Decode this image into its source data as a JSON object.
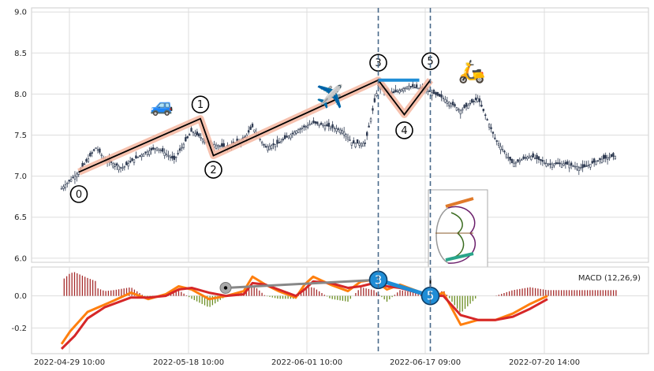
{
  "chart_data": {
    "type": "candlestick",
    "panels": [
      {
        "name": "price",
        "ylim": [
          5.95,
          9.05
        ],
        "yticks": [
          "6.0",
          "6.5",
          "7.0",
          "7.5",
          "8.0",
          "8.5",
          "9.0"
        ],
        "candles_approx": [
          {
            "t": 0.0,
            "close": 6.85
          },
          {
            "t": 2.0,
            "close": 7.05
          },
          {
            "t": 4.0,
            "close": 7.35
          },
          {
            "t": 5.0,
            "close": 7.2
          },
          {
            "t": 7.0,
            "close": 7.1
          },
          {
            "t": 9.0,
            "close": 7.25
          },
          {
            "t": 11.0,
            "close": 7.35
          },
          {
            "t": 13.0,
            "close": 7.2
          },
          {
            "t": 15.0,
            "close": 7.55
          },
          {
            "t": 17.0,
            "close": 7.4
          },
          {
            "t": 19.0,
            "close": 7.35
          },
          {
            "t": 21.0,
            "close": 7.45
          },
          {
            "t": 22.0,
            "close": 7.6
          },
          {
            "t": 23.5,
            "close": 7.35
          },
          {
            "t": 25.0,
            "close": 7.4
          },
          {
            "t": 27.0,
            "close": 7.55
          },
          {
            "t": 29.0,
            "close": 7.65
          },
          {
            "t": 31.0,
            "close": 7.6
          },
          {
            "t": 32.5,
            "close": 7.55
          },
          {
            "t": 33.5,
            "close": 7.4
          },
          {
            "t": 35.0,
            "close": 7.4
          },
          {
            "t": 36.5,
            "close": 8.1
          },
          {
            "t": 38.0,
            "close": 8.0
          },
          {
            "t": 40.0,
            "close": 8.1
          },
          {
            "t": 42.0,
            "close": 8.05
          },
          {
            "t": 44.0,
            "close": 7.95
          },
          {
            "t": 46.0,
            "close": 7.8
          },
          {
            "t": 48.0,
            "close": 7.95
          },
          {
            "t": 50.0,
            "close": 7.45
          },
          {
            "t": 52.0,
            "close": 7.15
          },
          {
            "t": 54.0,
            "close": 7.25
          },
          {
            "t": 56.0,
            "close": 7.15
          },
          {
            "t": 58.0,
            "close": 7.15
          },
          {
            "t": 60.0,
            "close": 7.1
          },
          {
            "t": 62.0,
            "close": 7.2
          },
          {
            "t": 64.0,
            "close": 7.25
          }
        ],
        "wave_points": [
          {
            "label": "0",
            "t": 2.0,
            "price": 7.05
          },
          {
            "label": "1",
            "t": 16.0,
            "price": 7.7
          },
          {
            "label": "2",
            "t": 17.5,
            "price": 7.25
          },
          {
            "label": "3",
            "t": 36.5,
            "price": 8.17
          },
          {
            "label": "4",
            "t": 39.5,
            "price": 7.75
          },
          {
            "label": "5",
            "t": 42.5,
            "price": 8.17
          }
        ],
        "vertical_lines_t": [
          36.5,
          42.5
        ],
        "annotations": [
          "car-emoji",
          "airplane-emoji",
          "scooter-emoji",
          "inset-image"
        ]
      },
      {
        "name": "macd",
        "ylim": [
          -0.36,
          0.18
        ],
        "yticks": [
          "-0.2",
          "0.0"
        ],
        "legend": "MACD (12,26,9)",
        "macd_line_approx": [
          {
            "t": 0.0,
            "v": -0.3
          },
          {
            "t": 1.0,
            "v": -0.22
          },
          {
            "t": 3.0,
            "v": -0.1
          },
          {
            "t": 6.0,
            "v": -0.03
          },
          {
            "t": 8.0,
            "v": 0.02
          },
          {
            "t": 10.0,
            "v": -0.02
          },
          {
            "t": 12.0,
            "v": 0.01
          },
          {
            "t": 13.5,
            "v": 0.06
          },
          {
            "t": 15.0,
            "v": 0.04
          },
          {
            "t": 17.0,
            "v": -0.02
          },
          {
            "t": 19.0,
            "v": 0.0
          },
          {
            "t": 21.0,
            "v": 0.03
          },
          {
            "t": 22.0,
            "v": 0.12
          },
          {
            "t": 23.5,
            "v": 0.07
          },
          {
            "t": 25.0,
            "v": 0.03
          },
          {
            "t": 27.0,
            "v": -0.01
          },
          {
            "t": 28.0,
            "v": 0.07
          },
          {
            "t": 29.0,
            "v": 0.12
          },
          {
            "t": 31.0,
            "v": 0.07
          },
          {
            "t": 33.0,
            "v": 0.03
          },
          {
            "t": 34.5,
            "v": 0.09
          },
          {
            "t": 36.0,
            "v": 0.1
          },
          {
            "t": 37.5,
            "v": 0.04
          },
          {
            "t": 39.0,
            "v": 0.07
          },
          {
            "t": 41.0,
            "v": 0.03
          },
          {
            "t": 42.5,
            "v": -0.01
          },
          {
            "t": 44.0,
            "v": 0.02
          },
          {
            "t": 46.0,
            "v": -0.18
          },
          {
            "t": 48.0,
            "v": -0.15
          },
          {
            "t": 50.0,
            "v": -0.15
          },
          {
            "t": 52.0,
            "v": -0.11
          },
          {
            "t": 54.0,
            "v": -0.05
          },
          {
            "t": 56.0,
            "v": 0.0
          }
        ],
        "signal_line_approx": [
          {
            "t": 0.0,
            "v": -0.33
          },
          {
            "t": 1.5,
            "v": -0.25
          },
          {
            "t": 3.0,
            "v": -0.14
          },
          {
            "t": 5.0,
            "v": -0.07
          },
          {
            "t": 8.0,
            "v": -0.01
          },
          {
            "t": 10.0,
            "v": -0.01
          },
          {
            "t": 12.0,
            "v": 0.0
          },
          {
            "t": 13.5,
            "v": 0.04
          },
          {
            "t": 15.0,
            "v": 0.05
          },
          {
            "t": 17.0,
            "v": 0.02
          },
          {
            "t": 19.0,
            "v": 0.0
          },
          {
            "t": 21.0,
            "v": 0.01
          },
          {
            "t": 22.0,
            "v": 0.08
          },
          {
            "t": 23.5,
            "v": 0.07
          },
          {
            "t": 25.0,
            "v": 0.04
          },
          {
            "t": 27.0,
            "v": 0.0
          },
          {
            "t": 28.0,
            "v": 0.04
          },
          {
            "t": 29.0,
            "v": 0.09
          },
          {
            "t": 31.0,
            "v": 0.08
          },
          {
            "t": 33.0,
            "v": 0.05
          },
          {
            "t": 34.5,
            "v": 0.06
          },
          {
            "t": 36.0,
            "v": 0.08
          },
          {
            "t": 37.5,
            "v": 0.06
          },
          {
            "t": 39.0,
            "v": 0.05
          },
          {
            "t": 41.0,
            "v": 0.02
          },
          {
            "t": 42.5,
            "v": 0.0
          },
          {
            "t": 44.0,
            "v": 0.0
          },
          {
            "t": 46.0,
            "v": -0.12
          },
          {
            "t": 48.0,
            "v": -0.15
          },
          {
            "t": 50.0,
            "v": -0.15
          },
          {
            "t": 52.0,
            "v": -0.13
          },
          {
            "t": 54.0,
            "v": -0.08
          },
          {
            "t": 56.0,
            "v": -0.02
          }
        ],
        "markers": [
          {
            "label": "3",
            "t": 36.5,
            "v": 0.1
          },
          {
            "label": "5",
            "t": 42.5,
            "v": 0.0
          }
        ]
      }
    ],
    "xticks": [
      "2022-04-29 10:00",
      "2022-05-18 10:00",
      "2022-06-01 10:00",
      "2022-06-17 09:00",
      "2022-07-20 14:00"
    ],
    "colors": {
      "up_candle": "#2f3b52",
      "wave_line": "#000000",
      "wave_halo": "#f4b6a0",
      "macd_line": "#ff7f0e",
      "signal_line": "#d62728",
      "hist_positive": "#a52a2a",
      "hist_negative": "#6b8e23",
      "connector_gray": "#888888",
      "connector_blue": "#1f8dd6",
      "dashed_vertical": "#4a6a8a"
    },
    "grid": true
  }
}
